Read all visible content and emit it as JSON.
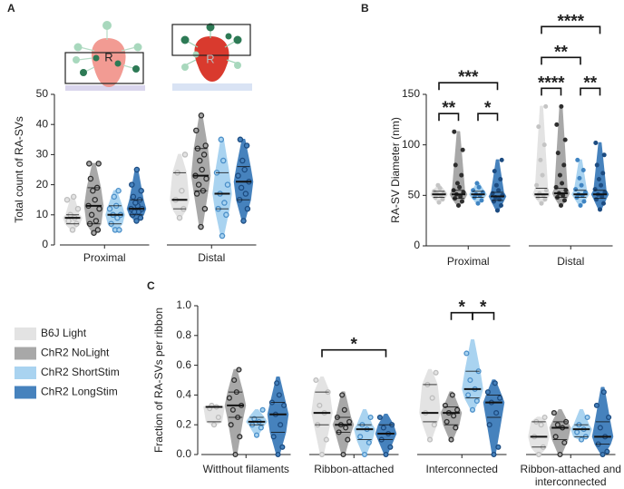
{
  "chart_data": [
    {
      "type": "violin",
      "panel_label": "A",
      "ylabel": "Total count of RA-SVs",
      "inset_labels": [
        "R",
        "R"
      ],
      "categories": [
        "Proximal",
        "Distal"
      ],
      "ylim": [
        0,
        50
      ],
      "yticks": [
        0,
        10,
        20,
        30,
        40,
        50
      ],
      "series": [
        {
          "color": "#e3e3e3",
          "point_color": "#bdbdbd",
          "min": [
            5,
            9
          ],
          "q1": [
            7,
            12
          ],
          "median": [
            9,
            15
          ],
          "q3": [
            10,
            24
          ],
          "max": [
            16,
            30
          ],
          "points": [
            [
              5,
              7,
              8,
              9,
              10,
              12,
              15,
              16
            ],
            [
              9,
              12,
              15,
              18,
              24,
              30
            ]
          ]
        },
        {
          "color": "#a8a8a8",
          "point_color": "#2e2e2e",
          "min": [
            4,
            6
          ],
          "q1": [
            7,
            18
          ],
          "median": [
            13,
            23
          ],
          "q3": [
            19,
            32
          ],
          "max": [
            27,
            43
          ],
          "points": [
            [
              4,
              5,
              7,
              8,
              10,
              12,
              13,
              15,
              18,
              19,
              22,
              27,
              27
            ],
            [
              6,
              12,
              17,
              18,
              20,
              22,
              23,
              25,
              28,
              30,
              32,
              33,
              38,
              43
            ]
          ]
        },
        {
          "color": "#a9d3f0",
          "point_color": "#4a8fc9",
          "min": [
            5,
            3
          ],
          "q1": [
            7,
            12
          ],
          "median": [
            10,
            17
          ],
          "q3": [
            13,
            24
          ],
          "max": [
            18,
            35
          ],
          "points": [
            [
              5,
              5,
              7,
              9,
              10,
              10,
              12,
              13,
              16,
              18
            ],
            [
              3,
              10,
              12,
              14,
              17,
              20,
              24,
              28,
              35
            ]
          ]
        },
        {
          "color": "#4682bd",
          "point_color": "#1c4b80",
          "min": [
            8,
            8
          ],
          "q1": [
            10,
            15
          ],
          "median": [
            12,
            21
          ],
          "q3": [
            15,
            26
          ],
          "max": [
            25,
            35
          ],
          "points": [
            [
              8,
              9,
              10,
              11,
              11,
              12,
              12,
              13,
              14,
              15,
              16,
              18,
              20,
              25
            ],
            [
              8,
              12,
              15,
              17,
              19,
              21,
              23,
              25,
              28,
              33,
              35
            ]
          ]
        }
      ]
    },
    {
      "type": "violin",
      "panel_label": "B",
      "ylabel": "RA-SV Diameter (nm)",
      "categories": [
        "Proximal",
        "Distal"
      ],
      "ylim": [
        0,
        150
      ],
      "yticks": [
        0,
        50,
        100,
        150
      ],
      "series": [
        {
          "color": "#e3e3e3",
          "point_color": "#c4c4c4",
          "min": [
            43,
            42
          ],
          "q1": [
            48,
            48
          ],
          "median": [
            51,
            51
          ],
          "q3": [
            54,
            57
          ],
          "max": [
            60,
            138
          ],
          "points": [
            [
              43,
              46,
              48,
              50,
              51,
              52,
              54,
              57,
              60
            ],
            [
              42,
              46,
              48,
              50,
              52,
              55,
              60,
              70,
              85,
              100,
              118,
              138
            ]
          ]
        },
        {
          "color": "#a8a8a8",
          "point_color": "#2e2e2e",
          "min": [
            40,
            40
          ],
          "q1": [
            47,
            48
          ],
          "median": [
            51,
            52
          ],
          "q3": [
            55,
            57
          ],
          "max": [
            113,
            138
          ],
          "points": [
            [
              40,
              44,
              47,
              49,
              51,
              53,
              55,
              58,
              62,
              70,
              80,
              95,
              113
            ],
            [
              40,
              45,
              48,
              50,
              52,
              55,
              58,
              62,
              70,
              80,
              92,
              105,
              120,
              138
            ]
          ]
        },
        {
          "color": "#a9d3f0",
          "point_color": "#3f84c2",
          "min": [
            42,
            40
          ],
          "q1": [
            48,
            48
          ],
          "median": [
            51,
            51
          ],
          "q3": [
            54,
            55
          ],
          "max": [
            62,
            85
          ],
          "points": [
            [
              42,
              45,
              48,
              50,
              51,
              53,
              55,
              58,
              62
            ],
            [
              40,
              44,
              48,
              50,
              51,
              53,
              56,
              60,
              67,
              75,
              85
            ]
          ]
        },
        {
          "color": "#4682bd",
          "point_color": "#1c4b80",
          "min": [
            35,
            36
          ],
          "q1": [
            45,
            47
          ],
          "median": [
            49,
            51
          ],
          "q3": [
            53,
            55
          ],
          "max": [
            85,
            102
          ],
          "points": [
            [
              35,
              40,
              44,
              46,
              48,
              50,
              52,
              55,
              60,
              66,
              74,
              85
            ],
            [
              36,
              42,
              46,
              49,
              51,
              53,
              56,
              60,
              66,
              72,
              80,
              90,
              102
            ]
          ]
        }
      ],
      "brackets": [
        {
          "category": 0,
          "from": 0,
          "to": 1,
          "label": "**"
        },
        {
          "category": 0,
          "from": 2,
          "to": 3,
          "label": "*"
        },
        {
          "category": 0,
          "from": 0,
          "to": 3,
          "label": "***"
        },
        {
          "category": 1,
          "from": 0,
          "to": 1,
          "label": "****"
        },
        {
          "category": 1,
          "from": 2,
          "to": 3,
          "label": "**"
        },
        {
          "category": 1,
          "from": 0,
          "to": 2,
          "label": "**"
        },
        {
          "category": 1,
          "from": 0,
          "to": 3,
          "label": "****"
        }
      ]
    },
    {
      "type": "violin",
      "panel_label": "C",
      "ylabel": "Fraction of RA-SVs per ribbon",
      "legend": "left",
      "categories": [
        "Witthout filaments",
        "Ribbon-attached",
        "Interconnected",
        "Ribbon-attached and interconnected"
      ],
      "ylim": [
        0,
        1
      ],
      "yticks": [
        {
          "value": 0,
          "label": "0.0"
        },
        0.2,
        0.4,
        0.6,
        0.8,
        {
          "value": 1,
          "label": "1.0"
        }
      ],
      "series": [
        {
          "name": "B6J Light",
          "color": "#e3e3e3",
          "point_color": "#bdbdbd",
          "min": [
            0.2,
            0,
            0.1,
            0
          ],
          "q1": [
            0.22,
            0.2,
            0.22,
            0.05
          ],
          "median": [
            0.32,
            0.28,
            0.28,
            0.12
          ],
          "q3": [
            0.32,
            0.42,
            0.47,
            0.22
          ],
          "max": [
            0.33,
            0.52,
            0.57,
            0.25
          ],
          "points": [
            [
              0.2,
              0.25,
              0.31,
              0.32,
              0.33
            ],
            [
              0,
              0.1,
              0.2,
              0.28,
              0.33,
              0.42,
              0.5
            ],
            [
              0.1,
              0.2,
              0.28,
              0.38,
              0.47,
              0.55
            ],
            [
              0,
              0.05,
              0.12,
              0.2,
              0.22,
              0.25
            ]
          ]
        },
        {
          "name": "ChR2 NoLight",
          "color": "#a8a8a8",
          "point_color": "#2e2e2e",
          "min": [
            0,
            0,
            0.1,
            0
          ],
          "q1": [
            0.25,
            0.15,
            0.2,
            0.1
          ],
          "median": [
            0.33,
            0.2,
            0.28,
            0.18
          ],
          "q3": [
            0.42,
            0.25,
            0.32,
            0.22
          ],
          "max": [
            0.57,
            0.42,
            0.42,
            0.3
          ],
          "points": [
            [
              0,
              0.12,
              0.2,
              0.25,
              0.3,
              0.33,
              0.38,
              0.42,
              0.5,
              0.57
            ],
            [
              0,
              0.1,
              0.15,
              0.18,
              0.2,
              0.22,
              0.25,
              0.3,
              0.4
            ],
            [
              0.1,
              0.18,
              0.22,
              0.26,
              0.28,
              0.3,
              0.33,
              0.4
            ],
            [
              0,
              0.08,
              0.12,
              0.18,
              0.2,
              0.22,
              0.28
            ]
          ]
        },
        {
          "name": "ChR2 ShortStim",
          "color": "#a9d3f0",
          "point_color": "#4a8fc9",
          "min": [
            0.13,
            0,
            0.3,
            0.1
          ],
          "q1": [
            0.2,
            0.1,
            0.38,
            0.12
          ],
          "median": [
            0.22,
            0.17,
            0.44,
            0.17
          ],
          "q3": [
            0.25,
            0.2,
            0.56,
            0.2
          ],
          "max": [
            0.3,
            0.3,
            0.77,
            0.3
          ],
          "points": [
            [
              0.13,
              0.18,
              0.2,
              0.22,
              0.24,
              0.3
            ],
            [
              0,
              0.08,
              0.12,
              0.17,
              0.2,
              0.25
            ],
            [
              0.3,
              0.36,
              0.4,
              0.44,
              0.5,
              0.56,
              0.68
            ],
            [
              0.1,
              0.12,
              0.15,
              0.17,
              0.2,
              0.25
            ]
          ]
        },
        {
          "name": "ChR2 LongStim",
          "color": "#4682bd",
          "point_color": "#1c4b80",
          "min": [
            0,
            0,
            0,
            0
          ],
          "q1": [
            0.15,
            0.1,
            0.25,
            0.07
          ],
          "median": [
            0.27,
            0.14,
            0.35,
            0.12
          ],
          "q3": [
            0.35,
            0.2,
            0.4,
            0.22
          ],
          "max": [
            0.52,
            0.27,
            0.5,
            0.45
          ],
          "points": [
            [
              0,
              0.05,
              0.12,
              0.2,
              0.27,
              0.33,
              0.35,
              0.4,
              0.48
            ],
            [
              0,
              0.05,
              0.1,
              0.14,
              0.18,
              0.2,
              0.25
            ],
            [
              0,
              0.05,
              0.2,
              0.28,
              0.35,
              0.38,
              0.42,
              0.48
            ],
            [
              0,
              0.02,
              0.07,
              0.12,
              0.18,
              0.25,
              0.33,
              0.42
            ]
          ]
        }
      ],
      "brackets": [
        {
          "category": 1,
          "from": 0,
          "to": 3,
          "label": "*"
        },
        {
          "category": 2,
          "from": 1,
          "to": 2,
          "label": "*"
        },
        {
          "category": 2,
          "from": 2,
          "to": 3,
          "label": "*"
        }
      ]
    }
  ]
}
